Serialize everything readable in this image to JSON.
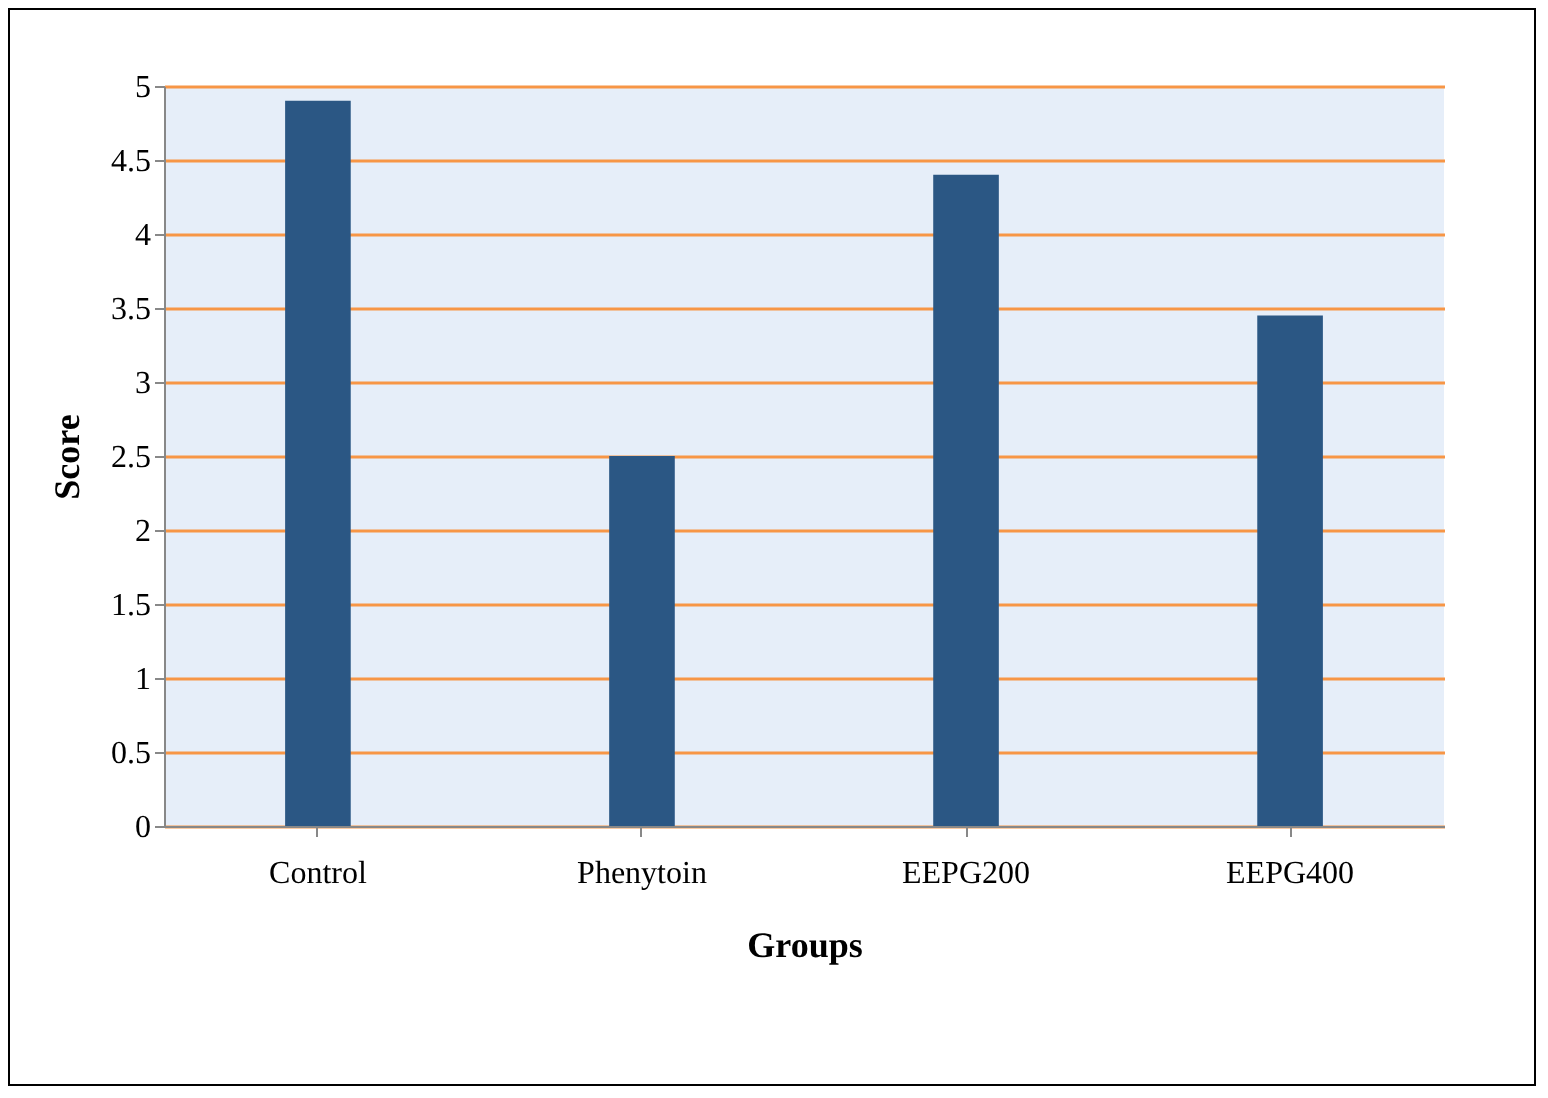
{
  "chart_data": {
    "type": "bar",
    "xlabel": "Groups",
    "ylabel": "Score",
    "categories": [
      "Control",
      "Phenytoin",
      "EEPG200",
      "EEPG400"
    ],
    "values": [
      4.9,
      2.5,
      4.4,
      3.45
    ],
    "color": "#2b5784",
    "ylim": [
      0,
      5
    ],
    "yticks": [
      0,
      0.5,
      1,
      1.5,
      2,
      2.5,
      3,
      3.5,
      4,
      4.5,
      5
    ],
    "grid": "y"
  }
}
